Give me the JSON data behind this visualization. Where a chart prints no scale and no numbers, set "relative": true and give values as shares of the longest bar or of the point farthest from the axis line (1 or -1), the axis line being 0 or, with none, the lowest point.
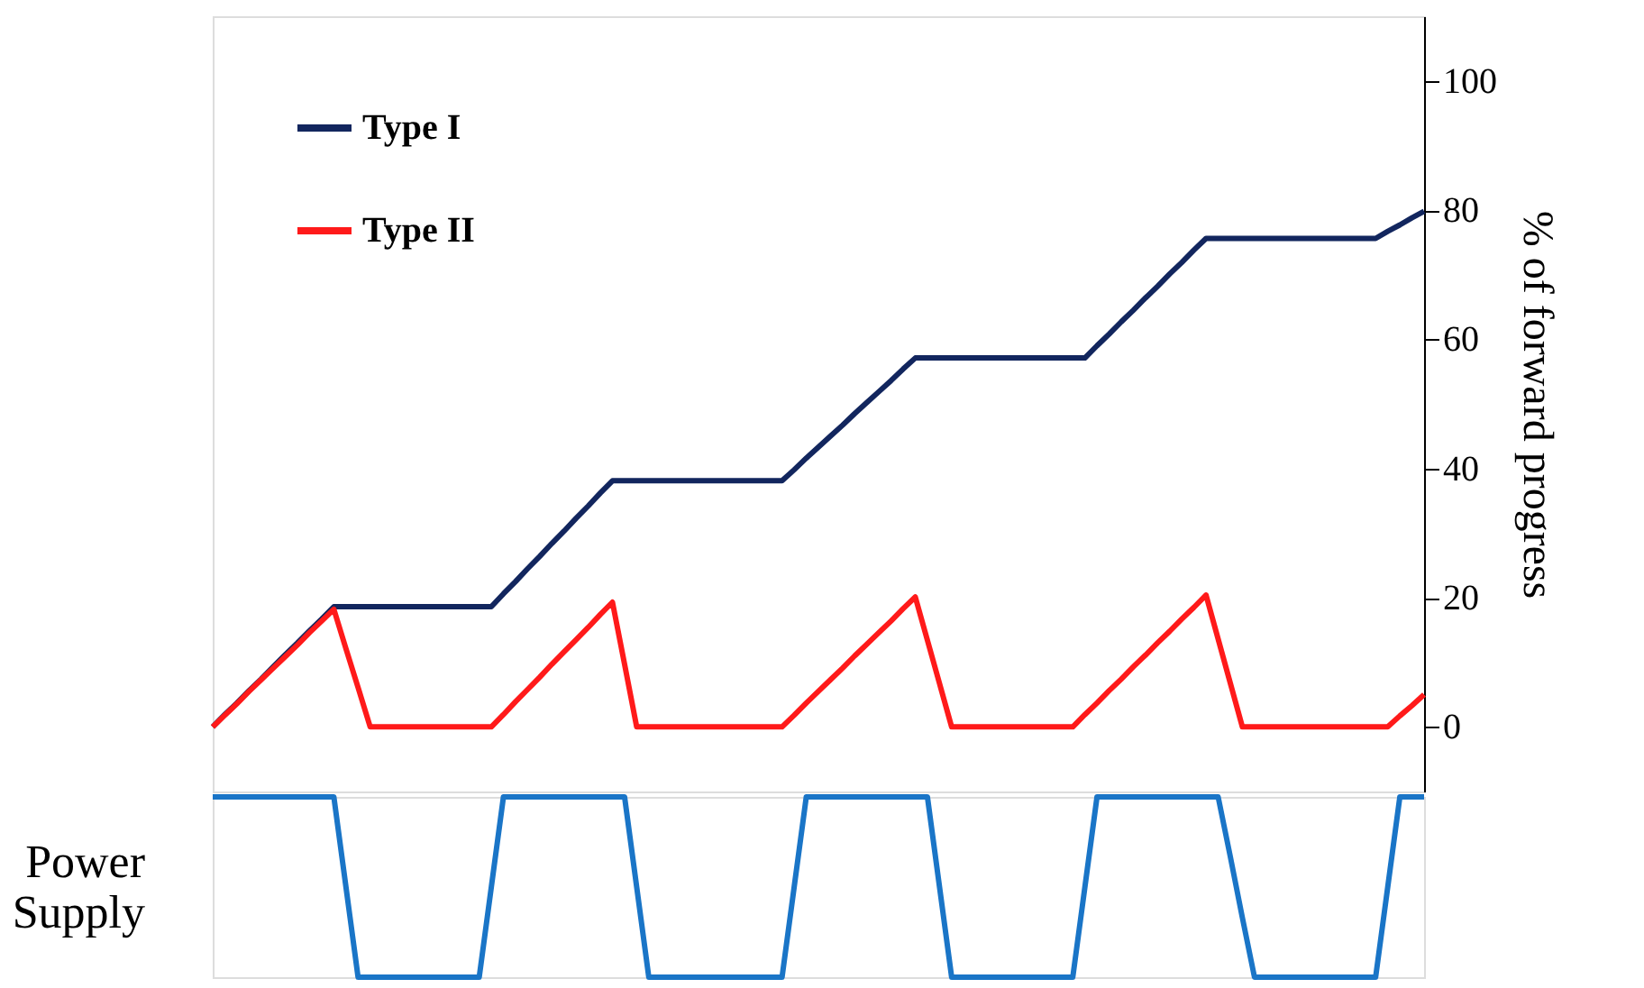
{
  "chart_data": [
    {
      "type": "line",
      "ylabel": "% of forward progress",
      "ylim": [
        -10,
        110
      ],
      "yticks": [
        0,
        20,
        40,
        60,
        80,
        100
      ],
      "tick_labels": "y",
      "grid": false,
      "legend": "top left",
      "marker": "none",
      "line_style": "solid",
      "categories": [
        null,
        null,
        null,
        null,
        null,
        null,
        null,
        null,
        null,
        null,
        null,
        null,
        null,
        null,
        null,
        null,
        null,
        null,
        null,
        null,
        null,
        null,
        null,
        null,
        null,
        null,
        null,
        null,
        null,
        null,
        null,
        null,
        null,
        null,
        null,
        null,
        null,
        null,
        null,
        null,
        null,
        null,
        null,
        null,
        null,
        null,
        null,
        null,
        null,
        null,
        null,
        null,
        null,
        null,
        null,
        null,
        null,
        null,
        null,
        null,
        null,
        null,
        null,
        null,
        null,
        null,
        null,
        null,
        null,
        null,
        null,
        null,
        null,
        null,
        null,
        null,
        null,
        null,
        null,
        null,
        null,
        null,
        null,
        null,
        null,
        null,
        null,
        null,
        null,
        null,
        null,
        null,
        null,
        null,
        null,
        null,
        null,
        null,
        null,
        null,
        null
      ],
      "series": [
        {
          "name": "Type I",
          "color": "#12265e",
          "values": [
            0,
            1.9,
            3.7,
            5.6,
            7.4,
            9.3,
            11.2,
            13.0,
            14.9,
            16.7,
            18.6,
            18.6,
            18.6,
            18.6,
            18.6,
            18.6,
            18.6,
            18.6,
            18.6,
            18.6,
            18.6,
            18.6,
            18.6,
            18.6,
            20.6,
            22.5,
            24.5,
            26.4,
            28.4,
            30.3,
            32.3,
            34.2,
            36.2,
            38.1,
            38.1,
            38.1,
            38.1,
            38.1,
            38.1,
            38.1,
            38.1,
            38.1,
            38.1,
            38.1,
            38.1,
            38.1,
            38.1,
            38.1,
            39.8,
            41.6,
            43.3,
            45.0,
            46.7,
            48.5,
            50.2,
            51.9,
            53.6,
            55.4,
            57.1,
            57.1,
            57.1,
            57.1,
            57.1,
            57.1,
            57.1,
            57.1,
            57.1,
            57.1,
            57.1,
            57.1,
            57.1,
            57.1,
            57.1,
            59.0,
            60.8,
            62.7,
            64.5,
            66.4,
            68.2,
            70.1,
            71.9,
            73.8,
            75.6,
            75.6,
            75.6,
            75.6,
            75.6,
            75.6,
            75.6,
            75.6,
            75.6,
            75.6,
            75.6,
            75.6,
            75.6,
            75.6,
            75.6,
            76.7,
            77.7,
            78.8,
            79.8
          ]
        },
        {
          "name": "Type II",
          "color": "#ff1a1a",
          "values": [
            0,
            1.8,
            3.6,
            5.5,
            7.3,
            9.1,
            10.9,
            12.7,
            14.6,
            16.4,
            18.2,
            12.1,
            6.1,
            0,
            0,
            0,
            0,
            0,
            0,
            0,
            0,
            0,
            0,
            0,
            1.9,
            3.9,
            5.8,
            7.7,
            9.7,
            11.6,
            13.5,
            15.4,
            17.4,
            19.3,
            9.7,
            0,
            0,
            0,
            0,
            0,
            0,
            0,
            0,
            0,
            0,
            0,
            0,
            0,
            1.8,
            3.7,
            5.5,
            7.3,
            9.1,
            11.0,
            12.8,
            14.6,
            16.4,
            18.3,
            20.1,
            13.4,
            6.7,
            0,
            0,
            0,
            0,
            0,
            0,
            0,
            0,
            0,
            0,
            0,
            1.9,
            3.7,
            5.6,
            7.4,
            9.3,
            11.1,
            13.0,
            14.8,
            16.7,
            18.5,
            20.4,
            13.6,
            6.8,
            0,
            0,
            0,
            0,
            0,
            0,
            0,
            0,
            0,
            0,
            0,
            0,
            0,
            1.7,
            3.3,
            5
          ]
        }
      ]
    },
    {
      "type": "line",
      "ylabel": "Power Supply",
      "relative": true,
      "tick_labels": false,
      "grid": false,
      "marker": "none",
      "line_style": "solid",
      "categories": [
        null,
        null,
        null,
        null,
        null,
        null,
        null,
        null,
        null,
        null,
        null,
        null,
        null,
        null,
        null,
        null,
        null,
        null,
        null,
        null,
        null,
        null,
        null,
        null,
        null,
        null,
        null,
        null,
        null,
        null,
        null,
        null,
        null,
        null,
        null,
        null,
        null,
        null,
        null,
        null,
        null,
        null,
        null,
        null,
        null,
        null,
        null,
        null,
        null,
        null,
        null,
        null,
        null,
        null,
        null,
        null,
        null,
        null,
        null,
        null,
        null,
        null,
        null,
        null,
        null,
        null,
        null,
        null,
        null,
        null,
        null,
        null,
        null,
        null,
        null,
        null,
        null,
        null,
        null,
        null,
        null,
        null,
        null,
        null,
        null,
        null,
        null,
        null,
        null,
        null,
        null,
        null,
        null,
        null,
        null,
        null,
        null,
        null,
        null,
        null,
        null
      ],
      "series": [
        {
          "color": "#1a75c7",
          "values": [
            1,
            1,
            1,
            1,
            1,
            1,
            1,
            1,
            1,
            1,
            1,
            0.5,
            0,
            0,
            0,
            0,
            0,
            0,
            0,
            0,
            0,
            0,
            0,
            0.5,
            1,
            1,
            1,
            1,
            1,
            1,
            1,
            1,
            1,
            1,
            1,
            0.5,
            0,
            0,
            0,
            0,
            0,
            0,
            0,
            0,
            0,
            0,
            0,
            0,
            0.5,
            1,
            1,
            1,
            1,
            1,
            1,
            1,
            1,
            1,
            1,
            1,
            0.5,
            0,
            0,
            0,
            0,
            0,
            0,
            0,
            0,
            0,
            0,
            0,
            0.5,
            1,
            1,
            1,
            1,
            1,
            1,
            1,
            1,
            1,
            1,
            1,
            0.67,
            0.33,
            0,
            0,
            0,
            0,
            0,
            0,
            0,
            0,
            0,
            0,
            0,
            0.5,
            1,
            1,
            1
          ]
        }
      ]
    }
  ]
}
